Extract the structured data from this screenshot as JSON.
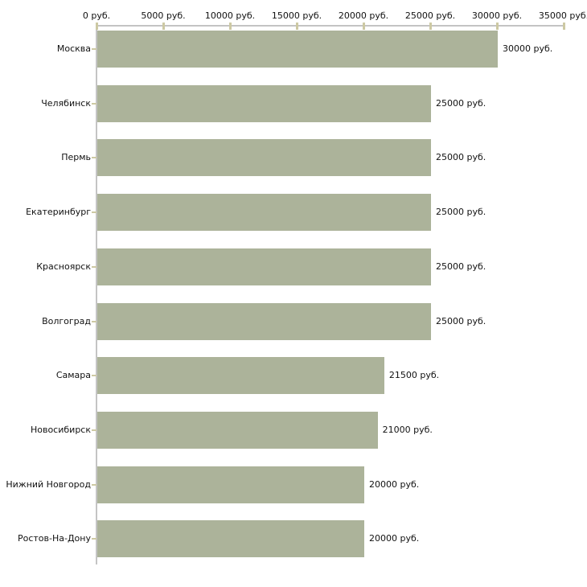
{
  "chart_data": {
    "type": "bar",
    "orientation": "horizontal",
    "unit": "руб.",
    "categories": [
      "Москва",
      "Челябинск",
      "Пермь",
      "Екатеринбург",
      "Красноярск",
      "Волгоград",
      "Самара",
      "Новосибирск",
      "Нижний Новгород",
      "Ростов-На-Дону"
    ],
    "values": [
      30000,
      25000,
      25000,
      25000,
      25000,
      25000,
      21500,
      21000,
      20000,
      20000
    ],
    "value_labels": [
      "30000 руб.",
      "25000 руб.",
      "25000 руб.",
      "25000 руб.",
      "25000 руб.",
      "25000 руб.",
      "21500 руб.",
      "21000 руб.",
      "20000 руб.",
      "20000 руб."
    ],
    "x_ticks": [
      0,
      5000,
      10000,
      15000,
      20000,
      25000,
      30000,
      35000
    ],
    "x_tick_labels": [
      "0 руб.",
      "5000 руб.",
      "10000 руб.",
      "15000 руб.",
      "20000 руб.",
      "25000 руб.",
      "30000 руб.",
      "35000 руб."
    ],
    "xlim": [
      0,
      35000
    ],
    "grid": false,
    "legend": false,
    "colors": {
      "bar": "#acb39a",
      "axis_line": "#c4c4c4",
      "tick_mark": "#cdc9a3",
      "text": "#111111",
      "background": "#ffffff"
    }
  }
}
